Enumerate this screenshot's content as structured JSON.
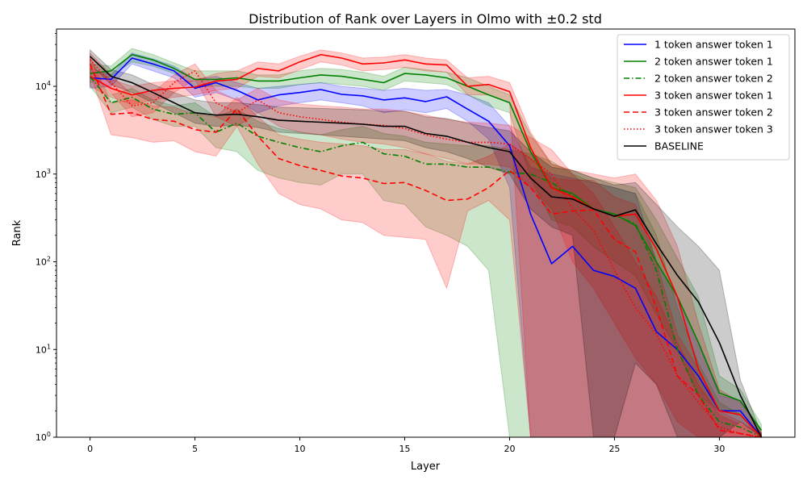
{
  "chart_data": {
    "type": "line",
    "title": "Distribution of Rank over Layers in Olmo with ±0.2 std",
    "xlabel": "Layer",
    "ylabel": "Rank",
    "xlim": [
      -1.6,
      33.6
    ],
    "ylim": [
      1,
      45000
    ],
    "yscale": "log",
    "xticks": [
      0,
      5,
      10,
      15,
      20,
      25,
      30
    ],
    "yticks": [
      {
        "value": 1,
        "label": "10^0"
      },
      {
        "value": 10,
        "label": "10^1"
      },
      {
        "value": 100,
        "label": "10^2"
      },
      {
        "value": 1000,
        "label": "10^3"
      },
      {
        "value": 10000,
        "label": "10^4"
      }
    ],
    "grid": false,
    "legend_position": "top-right",
    "x": [
      0,
      1,
      2,
      3,
      4,
      5,
      6,
      7,
      8,
      9,
      10,
      11,
      12,
      13,
      14,
      15,
      16,
      17,
      18,
      19,
      20,
      21,
      22,
      23,
      24,
      25,
      26,
      27,
      28,
      29,
      30,
      31,
      32
    ],
    "series": [
      {
        "name": "1 token answer token 1",
        "color": "#0000ff",
        "dash": "solid",
        "values": [
          12500,
          12000,
          21000,
          18000,
          15000,
          9500,
          11000,
          9000,
          7000,
          8000,
          8500,
          9200,
          8100,
          7800,
          7000,
          7400,
          6700,
          7600,
          5500,
          4000,
          2100,
          350,
          95,
          150,
          80,
          68,
          50,
          16,
          10,
          5,
          2,
          2,
          1
        ],
        "upper": [
          16000,
          13500,
          24000,
          20500,
          17000,
          12000,
          13000,
          11000,
          9500,
          10000,
          10500,
          11000,
          10000,
          9500,
          9000,
          9500,
          9000,
          9200,
          8000,
          6500,
          3500,
          1200,
          1000,
          900,
          800,
          700,
          600,
          100,
          40,
          12,
          3,
          2.6,
          1.1
        ],
        "lower": [
          9500,
          10000,
          18000,
          15000,
          12500,
          7500,
          8500,
          7000,
          5000,
          6000,
          6500,
          7000,
          6500,
          6000,
          5000,
          5400,
          5000,
          5600,
          4000,
          2500,
          700,
          1,
          1,
          1,
          1,
          1,
          1,
          1,
          1,
          1,
          1,
          1,
          1
        ]
      },
      {
        "name": "2 token answer token 1",
        "color": "#008000",
        "dash": "solid",
        "values": [
          14000,
          15000,
          23000,
          20000,
          16000,
          12000,
          12000,
          12500,
          11500,
          11500,
          12500,
          13500,
          13000,
          12000,
          11000,
          14000,
          13500,
          12500,
          10000,
          8000,
          6500,
          1800,
          700,
          600,
          400,
          350,
          260,
          100,
          40,
          12,
          3.2,
          2.6,
          1.2
        ],
        "upper": [
          18000,
          17000,
          27000,
          23000,
          18500,
          15000,
          15000,
          15000,
          13500,
          13500,
          15000,
          16000,
          15500,
          14500,
          13000,
          16500,
          15500,
          14500,
          12500,
          10000,
          8000,
          2800,
          1300,
          1100,
          900,
          800,
          700,
          300,
          110,
          40,
          5,
          3.5,
          1.4
        ],
        "lower": [
          11000,
          13000,
          19000,
          17000,
          14000,
          10000,
          10000,
          10000,
          9500,
          9500,
          10500,
          11000,
          10500,
          10000,
          9000,
          11500,
          11000,
          10500,
          8000,
          6000,
          5000,
          900,
          300,
          250,
          150,
          100,
          70,
          25,
          10,
          3,
          2,
          1.8,
          1
        ]
      },
      {
        "name": "2 token answer token 2",
        "color": "#008000",
        "dash": "dashdot",
        "values": [
          13000,
          6500,
          7500,
          5500,
          4800,
          5000,
          3000,
          3800,
          2700,
          2300,
          2000,
          1800,
          2100,
          2300,
          1700,
          1600,
          1300,
          1300,
          1200,
          1200,
          1050,
          1000,
          800,
          560,
          400,
          340,
          270,
          80,
          10,
          3,
          1.5,
          1.3,
          1
        ],
        "upper": [
          16000,
          8000,
          9500,
          7000,
          6000,
          6500,
          4500,
          5500,
          4000,
          3300,
          3000,
          2800,
          3200,
          3500,
          2900,
          2700,
          2300,
          2200,
          2100,
          2100,
          1900,
          1700,
          1400,
          1000,
          800,
          700,
          600,
          200,
          30,
          7,
          2.5,
          1.8,
          1.1
        ],
        "lower": [
          10000,
          5000,
          5800,
          4200,
          3500,
          3500,
          2000,
          1800,
          1100,
          900,
          800,
          750,
          1000,
          1000,
          500,
          450,
          250,
          200,
          150,
          80,
          1,
          1,
          1,
          1,
          1,
          1,
          1,
          1,
          1,
          1,
          1,
          1,
          1
        ]
      },
      {
        "name": "3 token answer token 1",
        "color": "#ff0000",
        "dash": "solid",
        "values": [
          13000,
          9500,
          8000,
          9000,
          9500,
          9800,
          11500,
          12000,
          16000,
          15000,
          19000,
          23000,
          21000,
          18000,
          18500,
          20000,
          18000,
          17500,
          10000,
          10500,
          8700,
          2000,
          700,
          550,
          400,
          330,
          350,
          140,
          40,
          6,
          2,
          1.8,
          1
        ],
        "upper": [
          17000,
          12000,
          10000,
          11000,
          11500,
          11500,
          14000,
          15000,
          19000,
          18000,
          22000,
          26000,
          24000,
          21000,
          21500,
          23000,
          21000,
          20000,
          12500,
          13000,
          11000,
          3000,
          1300,
          1100,
          1000,
          900,
          1000,
          500,
          150,
          20,
          3.5,
          2.5,
          1.2
        ],
        "lower": [
          10000,
          7500,
          6200,
          7000,
          7500,
          8000,
          9000,
          9500,
          13000,
          12500,
          15500,
          19000,
          17500,
          15000,
          15500,
          16500,
          15000,
          14500,
          8000,
          8000,
          6500,
          1,
          1,
          1,
          1,
          1,
          1,
          1,
          1,
          1,
          1,
          1,
          1
        ]
      },
      {
        "name": "3 token answer token 2",
        "color": "#ff0000",
        "dash": "dashed",
        "values": [
          18000,
          4800,
          5000,
          4200,
          4000,
          3200,
          3000,
          5500,
          2700,
          1500,
          1250,
          1100,
          950,
          900,
          780,
          800,
          650,
          500,
          520,
          700,
          1100,
          700,
          350,
          380,
          390,
          180,
          130,
          30,
          5,
          3,
          1.2,
          1.1,
          1
        ],
        "upper": [
          22000,
          6500,
          7000,
          6000,
          5800,
          4800,
          4500,
          7500,
          4500,
          2800,
          2500,
          2300,
          2200,
          2100,
          1900,
          1900,
          1700,
          1400,
          1300,
          1600,
          2200,
          1500,
          900,
          850,
          850,
          550,
          450,
          100,
          15,
          6,
          2,
          1.5,
          1.1
        ],
        "lower": [
          14000,
          2800,
          2600,
          2300,
          2400,
          1800,
          1600,
          3500,
          1300,
          600,
          450,
          400,
          300,
          280,
          200,
          190,
          180,
          50,
          380,
          500,
          300,
          1,
          1,
          1,
          1,
          1,
          1,
          1,
          1,
          1,
          1,
          1,
          1
        ]
      },
      {
        "name": "3 token answer token 3",
        "color": "#ff0000",
        "dash": "dotted",
        "values": [
          20000,
          11000,
          6000,
          6500,
          11000,
          15000,
          6500,
          5000,
          7000,
          5000,
          4500,
          4200,
          3900,
          3700,
          3600,
          3300,
          2800,
          2500,
          2300,
          2300,
          2200,
          1500,
          1000,
          400,
          230,
          80,
          30,
          15,
          5,
          2.5,
          1.3,
          1.1,
          1
        ],
        "upper": [
          24000,
          13500,
          8000,
          8500,
          13500,
          18000,
          9000,
          7000,
          9500,
          7000,
          6300,
          6000,
          5800,
          5500,
          5500,
          5200,
          4700,
          4200,
          3900,
          3800,
          3600,
          2600,
          1900,
          1000,
          600,
          250,
          100,
          40,
          12,
          4,
          1.8,
          1.4,
          1.1
        ],
        "lower": [
          16000,
          8500,
          4500,
          5000,
          8500,
          12000,
          4500,
          3500,
          5000,
          3500,
          3000,
          2800,
          2500,
          2300,
          2200,
          2000,
          1700,
          1500,
          1300,
          1300,
          1200,
          700,
          400,
          100,
          50,
          20,
          8,
          4,
          1.5,
          1,
          1,
          1,
          1
        ]
      },
      {
        "name": "BASELINE",
        "color": "#000000",
        "dash": "solid",
        "values": [
          22000,
          13000,
          11000,
          8500,
          6500,
          5000,
          4700,
          4800,
          4500,
          4100,
          4000,
          3900,
          3800,
          3700,
          3500,
          3500,
          2900,
          2700,
          2300,
          2000,
          1800,
          900,
          550,
          520,
          400,
          330,
          390,
          160,
          70,
          35,
          12,
          3,
          1
        ],
        "upper": [
          26000,
          15500,
          13500,
          10500,
          8500,
          7000,
          6500,
          6500,
          6200,
          5800,
          5700,
          5600,
          5500,
          5400,
          5200,
          5200,
          4500,
          4300,
          3800,
          3400,
          3100,
          1800,
          1200,
          1100,
          900,
          750,
          800,
          450,
          250,
          150,
          80,
          4.5,
          1.1
        ],
        "lower": [
          18000,
          10500,
          8500,
          6500,
          5000,
          3800,
          3500,
          3600,
          3400,
          3000,
          2900,
          2800,
          2700,
          2600,
          2500,
          2400,
          2000,
          1800,
          1500,
          1200,
          1000,
          400,
          250,
          200,
          1,
          1,
          7,
          4,
          1,
          1,
          1,
          1.5,
          1
        ]
      }
    ]
  }
}
